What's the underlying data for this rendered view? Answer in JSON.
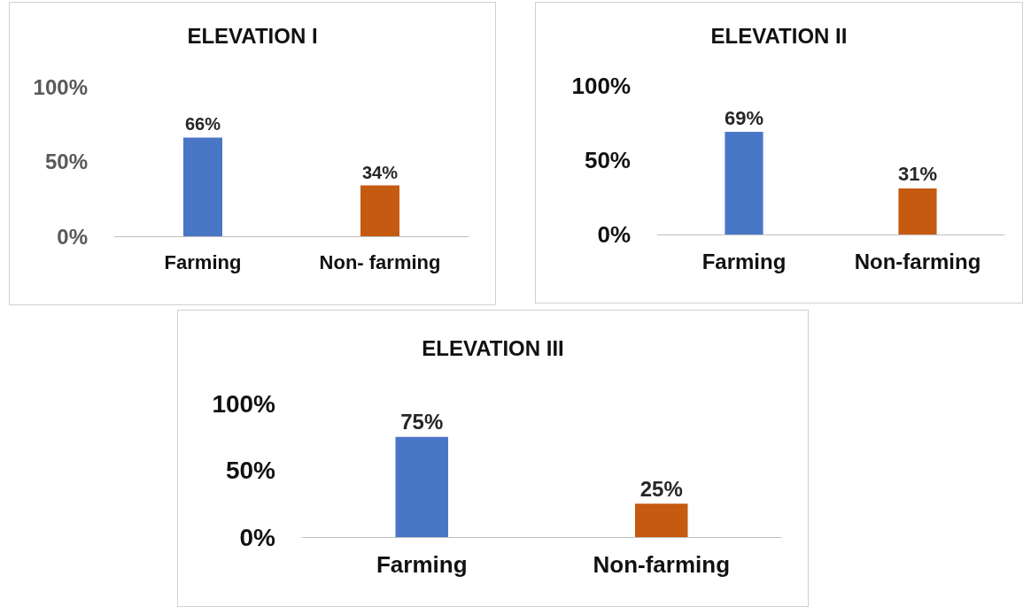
{
  "chart_data": [
    {
      "type": "bar",
      "title": "ELEVATION I",
      "categories": [
        "Farming",
        "Non- farming"
      ],
      "values": [
        66,
        34
      ],
      "colors": [
        "#4a76c6",
        "#c55a11"
      ],
      "ylim": [
        0,
        100
      ],
      "yticks": [
        {
          "value": 0,
          "label": "0%"
        },
        {
          "value": 50,
          "label": "50%"
        },
        {
          "value": 100,
          "label": "100%"
        }
      ],
      "data_labels": true,
      "value_labels": [
        "66%",
        "34%"
      ],
      "grid": false
    },
    {
      "type": "bar",
      "title": "ELEVATION II",
      "categories": [
        "Farming",
        "Non-farming"
      ],
      "values": [
        69,
        31
      ],
      "colors": [
        "#4a76c6",
        "#c55a11"
      ],
      "ylim": [
        0,
        100
      ],
      "yticks": [
        {
          "value": 0,
          "label": "0%"
        },
        {
          "value": 50,
          "label": "50%"
        },
        {
          "value": 100,
          "label": "100%"
        }
      ],
      "data_labels": true,
      "value_labels": [
        "69%",
        "31%"
      ],
      "grid": false
    },
    {
      "type": "bar",
      "title": "ELEVATION III",
      "categories": [
        "Farming",
        "Non-farming"
      ],
      "values": [
        75,
        25
      ],
      "colors": [
        "#4a76c6",
        "#c55a11"
      ],
      "ylim": [
        0,
        100
      ],
      "yticks": [
        {
          "value": 0,
          "label": "0%"
        },
        {
          "value": 50,
          "label": "50%"
        },
        {
          "value": 100,
          "label": "100%"
        }
      ],
      "data_labels": true,
      "value_labels": [
        "75%",
        "25%"
      ],
      "grid": false
    }
  ]
}
